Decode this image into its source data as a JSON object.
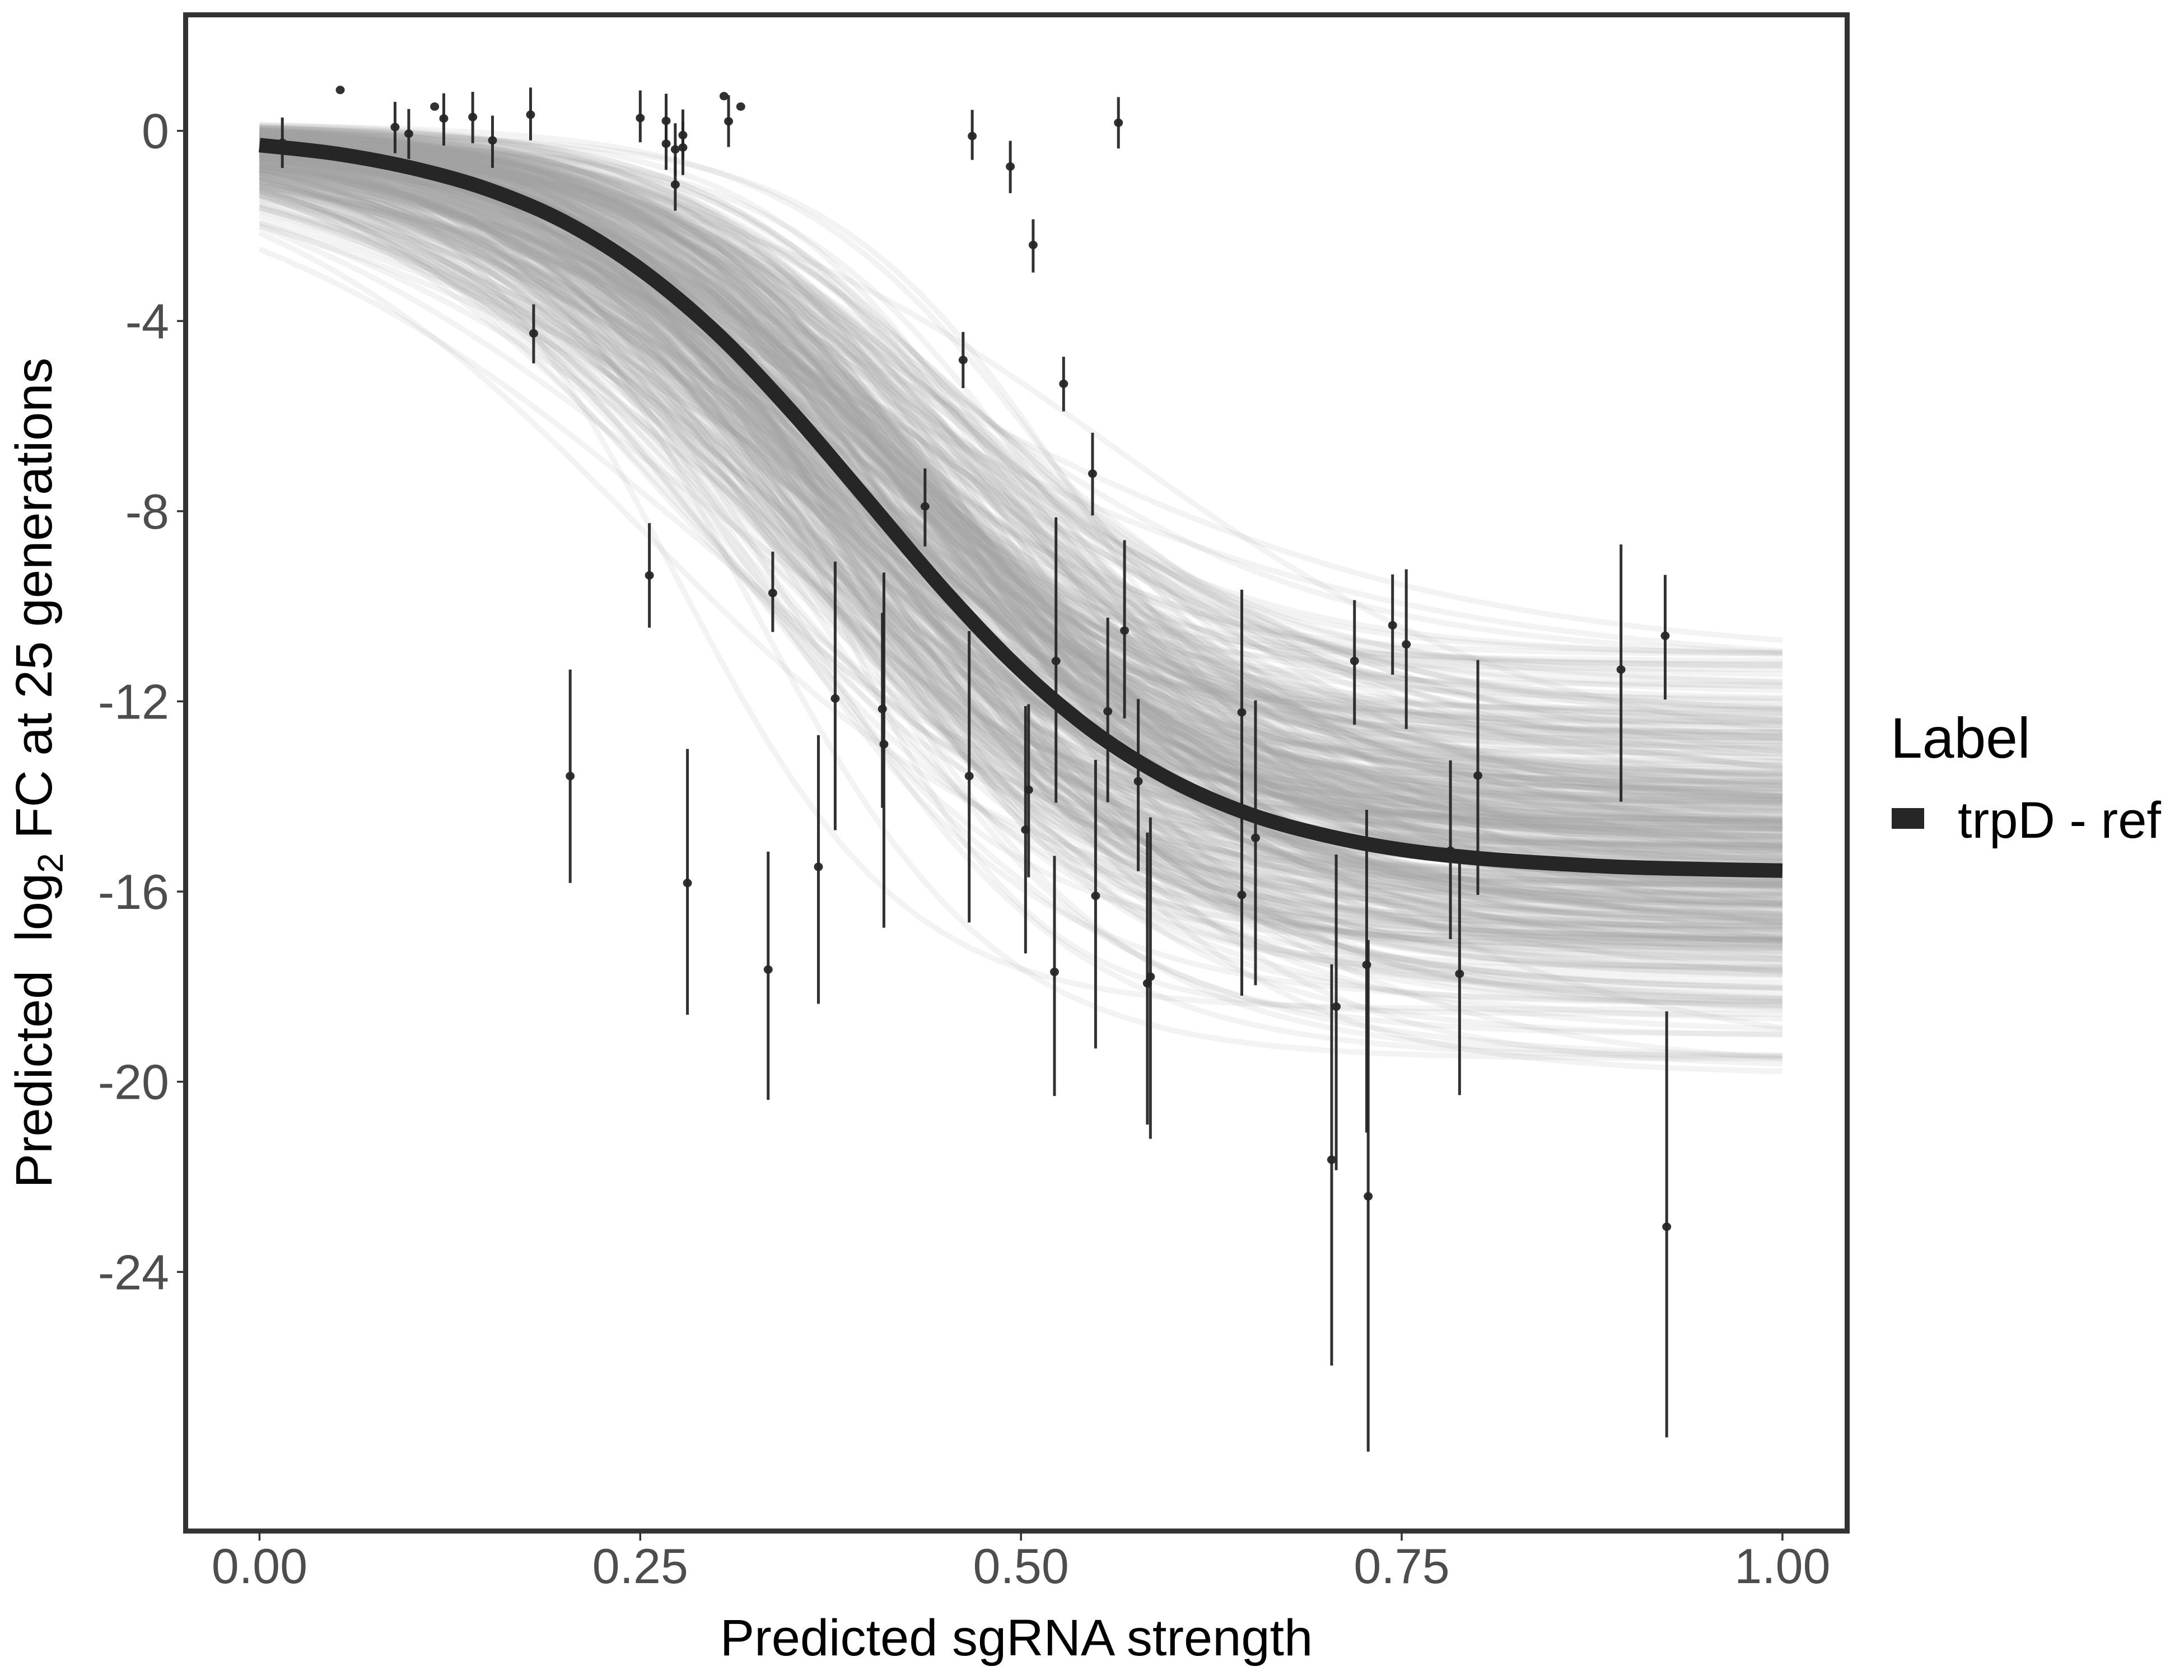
{
  "chart_data": {
    "type": "scatter",
    "title": "",
    "xlabel": "Predicted sgRNA strength",
    "ylabel": {
      "prefix": "Predicted  log",
      "subscript": "2",
      "suffix": " FC at 25 generations"
    },
    "xlim": [
      -0.0485,
      1.0425
    ],
    "ylim": [
      -29.45,
      2.44
    ],
    "grid": false,
    "x_ticks": [
      {
        "value": 0.0,
        "label": "0.00"
      },
      {
        "value": 0.25,
        "label": "0.25"
      },
      {
        "value": 0.5,
        "label": "0.50"
      },
      {
        "value": 0.75,
        "label": "0.75"
      },
      {
        "value": 1.0,
        "label": "1.00"
      }
    ],
    "y_ticks": [
      {
        "value": 0,
        "label": "0"
      },
      {
        "value": -4,
        "label": "-4"
      },
      {
        "value": -8,
        "label": "-8"
      },
      {
        "value": -12,
        "label": "-12"
      },
      {
        "value": -16,
        "label": "-16"
      },
      {
        "value": -20,
        "label": "-20"
      },
      {
        "value": -24,
        "label": "-24"
      }
    ],
    "legend": {
      "title": "Label",
      "position": "right",
      "entries": [
        {
          "label": "trpD - ref",
          "color": "#262626"
        }
      ]
    },
    "fitted_curve": {
      "name": "trpD - ref",
      "color": "#262626",
      "x": [
        0.0,
        0.05,
        0.1,
        0.15,
        0.2,
        0.25,
        0.3,
        0.35,
        0.4,
        0.45,
        0.5,
        0.55,
        0.6,
        0.65,
        0.7,
        0.75,
        0.8,
        0.85,
        0.9,
        0.95,
        1.0
      ],
      "y": [
        -0.3,
        -0.48,
        -0.78,
        -1.23,
        -1.91,
        -2.91,
        -4.25,
        -5.93,
        -7.8,
        -9.68,
        -11.35,
        -12.69,
        -13.68,
        -14.37,
        -14.82,
        -15.12,
        -15.3,
        -15.41,
        -15.49,
        -15.53,
        -15.56
      ]
    },
    "posterior_draws": {
      "count": 400,
      "color": "#a6a6a6",
      "form": "y = L / (1 + exp(-k (x - x0))) + c",
      "x_range": [
        0.0,
        1.0
      ],
      "L": {
        "mean": -15.3,
        "sd": 1.9,
        "range": [
          -19.6,
          -11.1
        ]
      },
      "k": {
        "mean": 9.5,
        "sd": 1.9,
        "range": [
          5.5,
          15
        ]
      },
      "x0": {
        "mean": 0.4,
        "sd": 0.055,
        "range": [
          0.25,
          0.58
        ]
      },
      "c": {
        "range": [
          -0.25,
          0.2
        ]
      },
      "y_at_x0_range": [
        -3.5,
        0.16
      ],
      "y_at_x1_range": [
        -19.6,
        -11.1
      ]
    },
    "points": {
      "color": "#262626",
      "fields": [
        "x",
        "y",
        "y_low",
        "y_high"
      ],
      "values": [
        [
          0.015,
          -0.25,
          -0.78,
          0.28
        ],
        [
          0.053,
          0.86,
          0.86,
          0.86
        ],
        [
          0.089,
          0.08,
          -0.47,
          0.61
        ],
        [
          0.098,
          -0.06,
          -0.59,
          0.46
        ],
        [
          0.115,
          0.51,
          0.51,
          0.51
        ],
        [
          0.121,
          0.26,
          -0.31,
          0.79
        ],
        [
          0.14,
          0.29,
          -0.26,
          0.82
        ],
        [
          0.153,
          -0.2,
          -0.78,
          0.32
        ],
        [
          0.178,
          0.34,
          -0.2,
          0.91
        ],
        [
          0.18,
          -4.26,
          -4.89,
          -3.65
        ],
        [
          0.204,
          -13.57,
          -15.82,
          -11.33
        ],
        [
          0.25,
          0.27,
          -0.24,
          0.85
        ],
        [
          0.256,
          -9.35,
          -10.45,
          -8.25
        ],
        [
          0.267,
          0.21,
          -0.3,
          0.78
        ],
        [
          0.267,
          -0.27,
          -0.82,
          0.3
        ],
        [
          0.273,
          -0.39,
          -0.95,
          0.16
        ],
        [
          0.273,
          -1.13,
          -1.68,
          -0.55
        ],
        [
          0.278,
          -0.09,
          -0.6,
          0.45
        ],
        [
          0.278,
          -0.35,
          -0.93,
          0.2
        ],
        [
          0.281,
          -15.82,
          -18.59,
          -13.0
        ],
        [
          0.305,
          0.73,
          0.73,
          0.73
        ],
        [
          0.308,
          0.2,
          -0.34,
          0.75
        ],
        [
          0.316,
          0.51,
          0.51,
          0.51
        ],
        [
          0.334,
          -17.64,
          -20.38,
          -15.16
        ],
        [
          0.337,
          -9.72,
          -10.54,
          -8.85
        ],
        [
          0.367,
          -15.48,
          -18.36,
          -12.71
        ],
        [
          0.378,
          -11.94,
          -14.71,
          -9.06
        ],
        [
          0.409,
          -12.16,
          -14.24,
          -10.14
        ],
        [
          0.41,
          -12.9,
          -16.76,
          -9.29
        ],
        [
          0.437,
          -7.9,
          -8.74,
          -7.1
        ],
        [
          0.462,
          -4.82,
          -5.41,
          -4.23
        ],
        [
          0.466,
          -13.57,
          -16.65,
          -10.52
        ],
        [
          0.468,
          -0.11,
          -0.61,
          0.44
        ],
        [
          0.493,
          -0.75,
          -1.31,
          -0.21
        ],
        [
          0.503,
          -14.7,
          -17.3,
          -12.1
        ],
        [
          0.505,
          -13.86,
          -15.7,
          -12.06
        ],
        [
          0.508,
          -2.4,
          -2.98,
          -1.86
        ],
        [
          0.522,
          -17.69,
          -20.3,
          -15.25
        ],
        [
          0.523,
          -11.15,
          -14.13,
          -8.13
        ],
        [
          0.528,
          -5.32,
          -5.9,
          -4.75
        ],
        [
          0.547,
          -7.21,
          -8.09,
          -6.35
        ],
        [
          0.549,
          -16.09,
          -19.3,
          -13.23
        ],
        [
          0.557,
          -12.21,
          -14.12,
          -10.24
        ],
        [
          0.564,
          0.17,
          -0.37,
          0.71
        ],
        [
          0.568,
          -10.51,
          -12.36,
          -8.61
        ],
        [
          0.577,
          -13.68,
          -15.57,
          -11.95
        ],
        [
          0.583,
          -17.93,
          -20.9,
          -14.76
        ],
        [
          0.585,
          -17.79,
          -21.2,
          -14.44
        ],
        [
          0.645,
          -12.23,
          -14.5,
          -9.65
        ],
        [
          0.645,
          -16.07,
          -18.19,
          -13.5
        ],
        [
          0.654,
          -14.87,
          -17.97,
          -11.98
        ],
        [
          0.704,
          -21.64,
          -25.97,
          -17.53
        ],
        [
          0.707,
          -18.42,
          -21.86,
          -15.22
        ],
        [
          0.719,
          -11.15,
          -12.49,
          -9.87
        ],
        [
          0.727,
          -17.54,
          -21.07,
          -14.28
        ],
        [
          0.728,
          -22.41,
          -27.78,
          -17.02
        ],
        [
          0.744,
          -10.4,
          -11.44,
          -9.33
        ],
        [
          0.753,
          -10.8,
          -12.58,
          -9.22
        ],
        [
          0.782,
          -15.14,
          -17.0,
          -13.24
        ],
        [
          0.788,
          -17.73,
          -20.28,
          -15.37
        ],
        [
          0.8,
          -13.56,
          -16.07,
          -11.13
        ],
        [
          0.894,
          -11.33,
          -14.11,
          -8.7
        ],
        [
          0.923,
          -10.62,
          -11.96,
          -9.34
        ],
        [
          0.924,
          -23.05,
          -27.48,
          -18.52
        ]
      ]
    },
    "colors": {
      "panel_border": "#333333",
      "tick_label": "#4d4d4d",
      "axis_title": "#000000",
      "background": "#ffffff"
    }
  }
}
